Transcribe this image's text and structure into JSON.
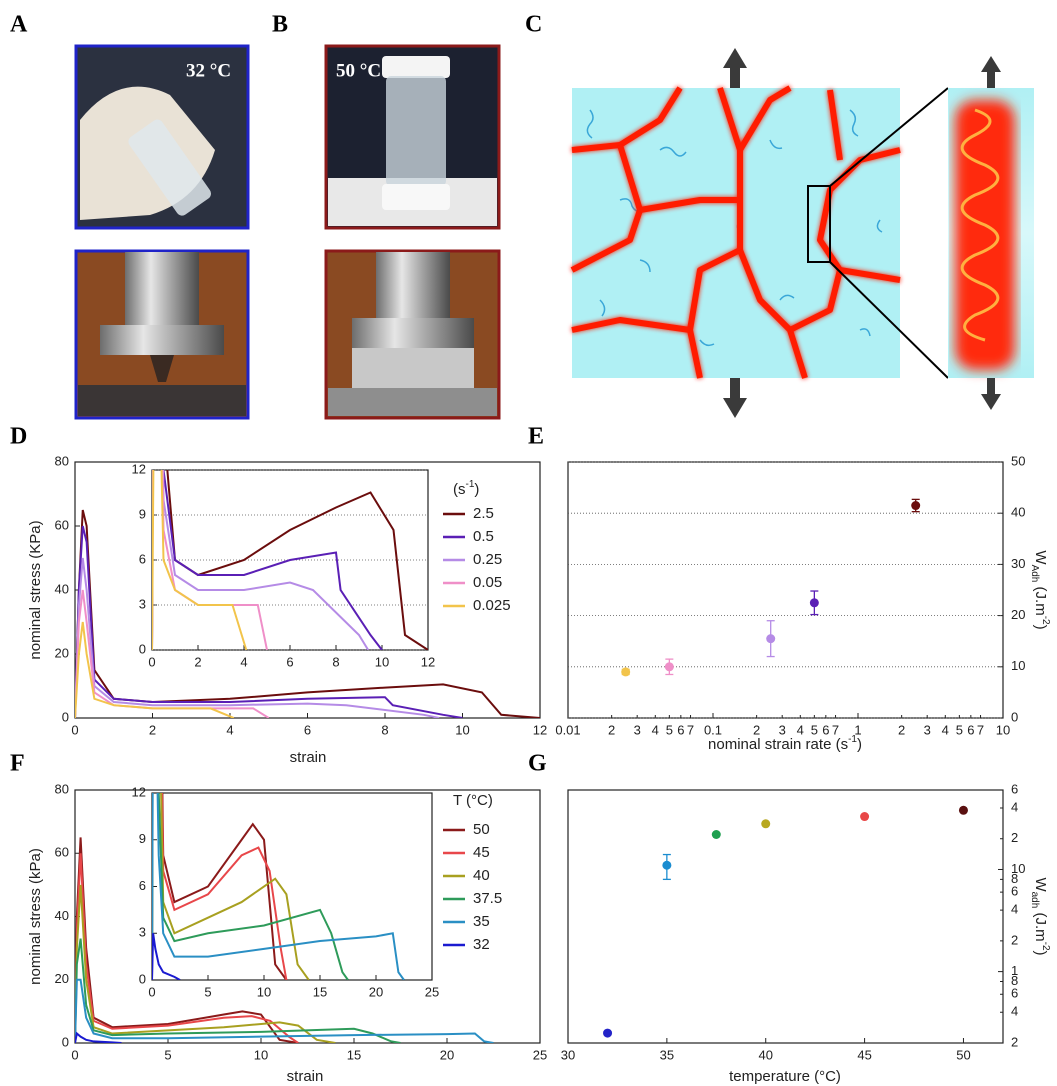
{
  "photo_panels": [
    {
      "label": "A",
      "caption": "32 °C"
    },
    {
      "label": "B",
      "caption": "50 °C"
    }
  ],
  "diagram_panel": {
    "label": "C"
  },
  "chart_data": [
    {
      "type": "line",
      "label": "D",
      "x_label": "strain",
      "y_label": "nominal stress (KPa)",
      "xlim": [
        0,
        12
      ],
      "ylim": [
        0,
        80
      ],
      "xticks": [
        0,
        2,
        4,
        6,
        8,
        10,
        12
      ],
      "yticks": [
        0,
        20,
        40,
        60,
        80
      ],
      "legend_title": [
        "(s",
        "-1",
        ")"
      ],
      "inset": {
        "xlim": [
          0,
          12
        ],
        "ylim": [
          0,
          12
        ],
        "xticks": [
          0,
          2,
          4,
          6,
          8,
          10,
          12
        ],
        "yticks": [
          0,
          3,
          6,
          9,
          12
        ],
        "grid": true
      },
      "series": [
        {
          "name": "2.5",
          "color": "#6b0d0d",
          "x": [
            0,
            0.1,
            0.2,
            0.3,
            0.5,
            1,
            2,
            4,
            6,
            8,
            9.5,
            10.5,
            11,
            12
          ],
          "values": [
            0,
            40,
            65,
            60,
            15,
            6,
            5,
            6,
            8,
            9.5,
            10.5,
            8,
            1,
            0
          ]
        },
        {
          "name": "0.5",
          "color": "#5a1fb5",
          "x": [
            0,
            0.1,
            0.2,
            0.3,
            0.5,
            1,
            2,
            4,
            6,
            8,
            8.2,
            9.5,
            10
          ],
          "values": [
            0,
            40,
            60,
            55,
            12,
            6,
            5,
            5,
            6,
            6.5,
            4,
            1,
            0
          ]
        },
        {
          "name": "0.25",
          "color": "#b58be6",
          "x": [
            0,
            0.1,
            0.2,
            0.3,
            0.5,
            1,
            2,
            4,
            6,
            7,
            9,
            9.4
          ],
          "values": [
            0,
            35,
            50,
            40,
            10,
            5,
            4,
            4,
            4.5,
            4,
            1,
            0
          ]
        },
        {
          "name": "0.05",
          "color": "#ef8fc8",
          "x": [
            0,
            0.1,
            0.2,
            0.3,
            0.5,
            1,
            2,
            4,
            4.6,
            5
          ],
          "values": [
            0,
            30,
            40,
            30,
            8,
            4,
            3,
            3,
            3,
            0
          ]
        },
        {
          "name": "0.025",
          "color": "#f2c44b",
          "x": [
            0,
            0.1,
            0.2,
            0.3,
            0.5,
            1,
            2,
            3.5,
            3.9,
            4.1
          ],
          "values": [
            0,
            20,
            30,
            20,
            6,
            4,
            3,
            3,
            1,
            0
          ]
        }
      ]
    },
    {
      "type": "scatter",
      "label": "E",
      "x_label": [
        "nominal strain rate (s",
        "-1",
        ")"
      ],
      "y_label": [
        "W",
        "Adh",
        " (J.m",
        "-2",
        ")"
      ],
      "log_x": true,
      "y_axis_side": "right",
      "grid": true,
      "xlim": [
        0.01,
        10
      ],
      "ylim": [
        0,
        50
      ],
      "xticks": [
        0.01,
        {
          "value": 0.02,
          "label": "2"
        },
        {
          "value": 0.03,
          "label": "3"
        },
        {
          "value": 0.04,
          "label": "4"
        },
        {
          "value": 0.05,
          "label": "5"
        },
        {
          "value": 0.06,
          "label": "6"
        },
        {
          "value": 0.07,
          "label": "7"
        },
        0.1,
        {
          "value": 0.2,
          "label": "2"
        },
        {
          "value": 0.3,
          "label": "3"
        },
        {
          "value": 0.4,
          "label": "4"
        },
        {
          "value": 0.5,
          "label": "5"
        },
        {
          "value": 0.6,
          "label": "6"
        },
        {
          "value": 0.7,
          "label": "7"
        },
        1,
        2,
        3,
        4,
        5,
        6,
        7,
        10
      ],
      "yticks": [
        0,
        10,
        20,
        30,
        40,
        50
      ],
      "x": [
        0.025,
        0.05,
        0.25,
        0.5,
        2.5
      ],
      "values": [
        9,
        10,
        15.5,
        22.5,
        41.5
      ],
      "errors": [
        0.5,
        1.5,
        3.5,
        2.3,
        1.2
      ],
      "colors": [
        "#f2c44b",
        "#ef8fc8",
        "#b58be6",
        "#5a1fb5",
        "#6b0d0d"
      ]
    },
    {
      "type": "line",
      "label": "F",
      "x_label": "strain",
      "y_label": "nominal stress (kPa)",
      "xlim": [
        0,
        25
      ],
      "ylim": [
        0,
        80
      ],
      "xticks": [
        0,
        5,
        10,
        15,
        20,
        25
      ],
      "yticks": [
        0,
        20,
        40,
        60,
        80
      ],
      "legend_title": [
        "T  (°C)"
      ],
      "inset": {
        "xlim": [
          0,
          25
        ],
        "ylim": [
          0,
          12
        ],
        "xticks": [
          0,
          5,
          10,
          15,
          20,
          25
        ],
        "yticks": [
          0,
          3,
          6,
          9,
          12
        ],
        "grid": false
      },
      "series": [
        {
          "name": "50",
          "color": "#8b1a1a",
          "x": [
            0,
            0.1,
            0.3,
            0.6,
            1,
            2,
            5,
            8,
            9,
            10,
            10.5,
            11,
            12
          ],
          "values": [
            0,
            40,
            65,
            30,
            8,
            5,
            6,
            9,
            10,
            9,
            5,
            1,
            0
          ]
        },
        {
          "name": "45",
          "color": "#e8474a",
          "x": [
            0,
            0.1,
            0.3,
            0.6,
            1,
            2,
            5,
            8,
            9.5,
            10.5,
            11.5,
            12
          ],
          "values": [
            0,
            35,
            60,
            25,
            7,
            4.5,
            5.5,
            8,
            8.5,
            7,
            2,
            0
          ]
        },
        {
          "name": "40",
          "color": "#a8a020",
          "x": [
            0,
            0.1,
            0.3,
            0.6,
            1,
            2,
            5,
            8,
            11,
            12,
            13,
            14
          ],
          "values": [
            0,
            30,
            50,
            20,
            5,
            3,
            4,
            5,
            6.5,
            5.5,
            1,
            0
          ]
        },
        {
          "name": "37.5",
          "color": "#2e9b5a",
          "x": [
            0,
            0.1,
            0.3,
            0.6,
            1,
            2,
            5,
            10,
            15,
            16,
            17,
            17.5
          ],
          "values": [
            0,
            25,
            33,
            12,
            4,
            2.5,
            3,
            3.5,
            4.5,
            3,
            0.5,
            0
          ]
        },
        {
          "name": "35",
          "color": "#2a8fc4",
          "x": [
            0,
            0.1,
            0.3,
            0.6,
            1,
            2,
            5,
            10,
            15,
            20,
            21.5,
            22,
            22.5
          ],
          "values": [
            0,
            20,
            20,
            8,
            3,
            1.5,
            1.5,
            2,
            2.5,
            2.8,
            3,
            0.5,
            0
          ]
        },
        {
          "name": "32",
          "color": "#1a1ad0",
          "x": [
            0,
            0.1,
            0.3,
            0.6,
            1,
            2,
            2.5
          ],
          "values": [
            0,
            3,
            2,
            1,
            0.5,
            0.2,
            0
          ]
        }
      ]
    },
    {
      "type": "scatter",
      "label": "G",
      "x_label": "temperature (°C)",
      "y_label": [
        "W",
        "adh",
        " (J.m",
        "-2",
        ")"
      ],
      "log_y": true,
      "y_axis_side": "right",
      "grid": false,
      "xlim": [
        30,
        52
      ],
      "ylim": [
        0.2,
        60
      ],
      "xticks": [
        30,
        35,
        40,
        45,
        50
      ],
      "yticks": [
        {
          "value": 0.2,
          "label": "2"
        },
        {
          "value": 0.4,
          "label": "4"
        },
        {
          "value": 0.6,
          "label": "6"
        },
        {
          "value": 0.8,
          "label": "8"
        },
        1,
        2,
        4,
        6,
        8,
        10,
        {
          "value": 20,
          "label": "2"
        },
        {
          "value": 40,
          "label": "4"
        },
        {
          "value": 60,
          "label": "6"
        }
      ],
      "x": [
        32,
        35,
        37.5,
        40,
        45,
        50
      ],
      "values": [
        0.25,
        11,
        22,
        28,
        33,
        38
      ],
      "errors": [
        null,
        3,
        null,
        null,
        null,
        null
      ],
      "colors": [
        "#2323c8",
        "#1a8cd0",
        "#1fa050",
        "#b8a820",
        "#e84848",
        "#5a1010"
      ]
    }
  ]
}
